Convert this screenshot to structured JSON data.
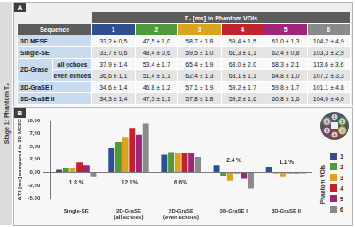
{
  "side_label": "Stage 1: Phantom T₂",
  "panel_a": {
    "label": "A",
    "table": {
      "header": "T₂ [ms] in Phantom VOIs",
      "first_column": "Sequence",
      "columns": [
        "1",
        "2",
        "3",
        "4",
        "5",
        "6"
      ],
      "rows": [
        {
          "sequence": "3D MESE",
          "values": [
            "33,2 ± 0,5",
            "47,5 ± 1,0",
            "58,7 ± 1,8",
            "59,4 ± 1,5",
            "61,0 ± 1,3",
            "104,2 ± 4,9"
          ]
        },
        {
          "sequence": "Single-SE",
          "values": [
            "33,7 ± 0,6",
            "48,4 ± 0,6",
            "59,5 ± 1,0",
            "61,3 ± 1,1",
            "62,4 ± 0,8",
            "103,3 ± 2,9"
          ]
        },
        {
          "sequence": "2D-Grase",
          "subrows": [
            {
              "sub": "all echoes",
              "values": [
                "37,9 ± 1,4",
                "53,4 ± 1,7",
                "65,4 ± 1,9",
                "68,0 ± 2,0",
                "68,3 ± 2,1",
                "113,6 ± 3,6"
              ]
            },
            {
              "sub": "even echoes",
              "values": [
                "36,6 ± 1,1",
                "51,4 ± 1,1",
                "62,4 ± 1,3",
                "63,1 ± 1,1",
                "64,8 ± 1,0",
                "107,2 ± 3,3"
              ]
            }
          ]
        },
        {
          "sequence": "3D-GraSE I",
          "values": [
            "34,6 ± 1,4",
            "46,8 ± 1,2",
            "57,1 ± 1,9",
            "59,2 ± 1,7",
            "59,8 ± 1,7",
            "101,1 ± 4,8"
          ]
        },
        {
          "sequence": "3D-GraSE II",
          "values": [
            "34,3 ± 1,4",
            "47,3 ± 1,1",
            "57,8 ± 1,8",
            "59,2 ± 1,6",
            "60,8 ± 1,6",
            "104,0 ± 4,0"
          ]
        }
      ]
    }
  },
  "panel_b": {
    "label": "B"
  },
  "chart_data": {
    "type": "bar",
    "categories": [
      "Single-SE",
      "2D-GraSE (all echoes)",
      "2D-GraSE (even echoes)",
      "3D-GraSE I",
      "3D-GraSE II"
    ],
    "series": [
      {
        "name": "1",
        "color": "#2f4f8f",
        "values": [
          0.5,
          4.7,
          3.4,
          1.4,
          1.1
        ]
      },
      {
        "name": "2",
        "color": "#4f9a3c",
        "values": [
          0.9,
          5.9,
          3.9,
          -0.7,
          -0.2
        ]
      },
      {
        "name": "3",
        "color": "#d9a520",
        "values": [
          0.8,
          6.7,
          3.7,
          -1.6,
          -0.9
        ]
      },
      {
        "name": "4",
        "color": "#c0232c",
        "values": [
          1.9,
          8.6,
          3.7,
          -0.2,
          -0.2
        ]
      },
      {
        "name": "5",
        "color": "#a0237c",
        "values": [
          1.4,
          7.3,
          3.8,
          -1.2,
          -0.2
        ]
      },
      {
        "name": "6",
        "color": "#8a8a8a",
        "values": [
          -0.9,
          9.4,
          3.0,
          -3.1,
          -0.2
        ]
      }
    ],
    "ylabel": "ΔT2 [ms] compared to 3D-MESE",
    "ylim": [
      -5,
      10
    ],
    "yticks": [
      {
        "value": -5,
        "label": "-5,00"
      },
      {
        "value": -2.5,
        "label": "-2,50"
      },
      {
        "value": 0,
        "label": "0,00"
      },
      {
        "value": 2.5,
        "label": "2,50"
      },
      {
        "value": 5,
        "label": "5,00"
      },
      {
        "value": 7.5,
        "label": "7,50"
      },
      {
        "value": 10,
        "label": "10,00"
      }
    ],
    "annotations": [
      {
        "category": "Single-SE",
        "text": "1.8 %"
      },
      {
        "category": "2D-GraSE (all echoes)",
        "text": "12.1%"
      },
      {
        "category": "2D-GraSE (even echoes)",
        "text": "6.6%"
      },
      {
        "category": "3D-GraSE I",
        "text": "2.4 %"
      },
      {
        "category": "3D-GraSE II",
        "text": "1.1 %"
      }
    ],
    "legend_title": "Phantom VOIs",
    "legend": "right",
    "grid": false
  }
}
